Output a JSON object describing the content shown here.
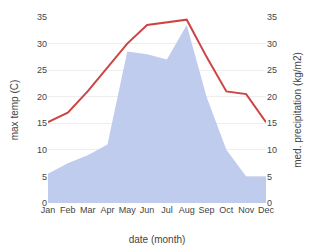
{
  "chart_data": {
    "type": "line",
    "categories": [
      "Jan",
      "Feb",
      "Mar",
      "Apr",
      "May",
      "Jun",
      "Jul",
      "Aug",
      "Sep",
      "Oct",
      "Nov",
      "Dec"
    ],
    "series": [
      {
        "type": "area",
        "color": "#c0ccee",
        "values": [
          5.5,
          7.5,
          9.0,
          11.0,
          28.5,
          28.0,
          27.0,
          33.5,
          20.0,
          10.0,
          5.0,
          5.0
        ]
      },
      {
        "type": "line",
        "color": "#cc4444",
        "axis": "y2",
        "values": [
          15.2,
          17.0,
          21.0,
          25.5,
          30.0,
          33.5,
          34.0,
          34.5,
          27.5,
          21.0,
          20.5,
          15.2
        ]
      }
    ],
    "xlabel": "date (month)",
    "ylabel": "max temp (C)",
    "y2label": "med. precipitation (kg/m2)",
    "ylim": [
      0,
      35
    ],
    "yticks": [
      0,
      5,
      10,
      15,
      20,
      25,
      30,
      35
    ],
    "y2lim": [
      0,
      35
    ],
    "y2ticks": [
      0,
      5,
      10,
      15,
      20,
      25,
      30,
      35
    ],
    "grid": "y"
  }
}
